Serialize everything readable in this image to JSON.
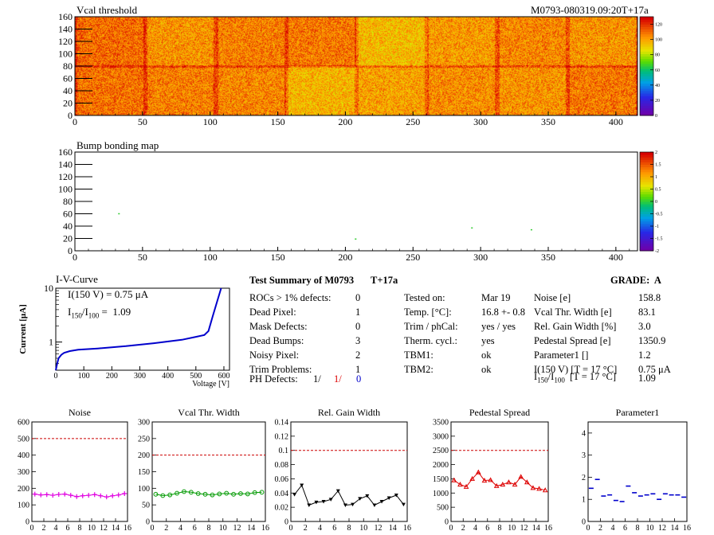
{
  "maps": {
    "vcal": {
      "title": "Vcal threshold",
      "module_label": "M0793-080319.09:20T+17a",
      "y_ticks": [
        "0",
        "20",
        "40",
        "60",
        "80",
        "100",
        "120",
        "140",
        "160"
      ],
      "x_ticks": [
        "0",
        "50",
        "100",
        "150",
        "200",
        "250",
        "300",
        "350",
        "400"
      ],
      "scale_ticks": [
        "0",
        "20",
        "40",
        "60",
        "80",
        "100",
        "120"
      ]
    },
    "bump": {
      "title": "Bump bonding map",
      "y_ticks": [
        "0",
        "20",
        "40",
        "60",
        "80",
        "100",
        "120",
        "140",
        "160"
      ],
      "x_ticks": [
        "0",
        "50",
        "100",
        "150",
        "200",
        "250",
        "300",
        "350",
        "400"
      ],
      "scale_ticks": [
        "-2",
        "-1.5",
        "-1",
        "-0.5",
        "0",
        "0.5",
        "1",
        "1.5",
        "2"
      ]
    }
  },
  "iv": {
    "title": "I-V-Curve",
    "ylabel": "Current [μA]",
    "xlabel": "Voltage [V]",
    "y_ticks": [
      "10",
      "1"
    ],
    "x_ticks": [
      "0",
      "100",
      "200",
      "300",
      "400",
      "500",
      "600"
    ],
    "line1": "I(150 V) = 0.75 μA",
    "line2_pre": "I",
    "line2_sub1": "150",
    "line2_mid": "/I",
    "line2_sub2": "100",
    "line2_post": " =  1.09"
  },
  "summary": {
    "header": "Test Summary of M0793",
    "suffix": "T+17a",
    "grade": "GRADE:  A",
    "col1": [
      {
        "label": "ROCs > 1% defects:",
        "value": "0"
      },
      {
        "label": "Dead Pixel:",
        "value": "1"
      },
      {
        "label": "Mask Defects:",
        "value": "0"
      },
      {
        "label": "Dead Bumps:",
        "value": "3"
      },
      {
        "label": "Noisy Pixel:",
        "value": "2"
      },
      {
        "label": "Trim Problems:",
        "value": "1"
      }
    ],
    "ph_defects": {
      "label": "PH Defects:",
      "v1": "1/",
      "v2": "1/",
      "v3": "0"
    },
    "col2": [
      {
        "label": "Tested on:",
        "value": "Mar 19"
      },
      {
        "label": "Temp. [°C]:",
        "value": "16.8 +- 0.8"
      },
      {
        "label": "Trim / phCal:",
        "value": "yes / yes"
      },
      {
        "label": "Therm. cycl.:",
        "value": "yes"
      },
      {
        "label": "TBM1:",
        "value": "ok"
      },
      {
        "label": "TBM2:",
        "value": "ok"
      }
    ],
    "col3": [
      {
        "label": "Noise [e]",
        "value": "158.8"
      },
      {
        "label": "Vcal Thr. Width [e]",
        "value": "83.1"
      },
      {
        "label": "Rel. Gain Width [%]",
        "value": "3.0"
      },
      {
        "label": "Pedestal Spread [e]",
        "value": "1350.9"
      },
      {
        "label": "Parameter1 []",
        "value": "1.2"
      },
      {
        "label": "I(150 V) [T = 17 °C]",
        "value": "0.75 μA"
      }
    ],
    "ratio": {
      "pre": "I",
      "sub1": "150",
      "mid": "/I",
      "sub2": "100",
      "post": "  [T = 17 °C]",
      "value": "1.09"
    }
  },
  "chart_data": [
    {
      "type": "heatmap",
      "title": "Vcal threshold",
      "x_range": [
        0,
        416
      ],
      "y_range": [
        0,
        160
      ],
      "z_range": [
        0,
        130
      ]
    },
    {
      "type": "heatmap",
      "title": "Bump bonding map",
      "x_range": [
        0,
        416
      ],
      "y_range": [
        0,
        160
      ],
      "z_range": [
        -2,
        2
      ]
    },
    {
      "type": "line",
      "title": "I-V-Curve",
      "xlabel": "Voltage [V]",
      "ylabel": "Current [μA]",
      "log_y": true,
      "x": [
        0,
        5,
        10,
        20,
        30,
        50,
        80,
        150,
        250,
        350,
        450,
        500,
        530,
        545,
        560,
        575,
        590
      ],
      "y": [
        0.3,
        0.4,
        0.5,
        0.58,
        0.63,
        0.68,
        0.72,
        0.76,
        0.84,
        0.95,
        1.1,
        1.25,
        1.35,
        1.6,
        3.0,
        5.5,
        10
      ]
    },
    {
      "type": "line",
      "title": "Noise",
      "color": "#e000e0",
      "marker": "cross",
      "xlim": [
        0,
        16
      ],
      "ylim": [
        0,
        600
      ],
      "threshold": 500,
      "y_ticks": [
        0,
        100,
        200,
        300,
        400,
        500,
        600
      ],
      "x_ticks": [
        0,
        2,
        4,
        6,
        8,
        10,
        12,
        14,
        16
      ],
      "x": [
        0,
        1,
        2,
        3,
        4,
        5,
        6,
        7,
        8,
        9,
        10,
        11,
        12,
        13,
        14,
        15
      ],
      "values": [
        165,
        160,
        162,
        158,
        163,
        165,
        158,
        150,
        155,
        158,
        162,
        155,
        148,
        155,
        160,
        168
      ]
    },
    {
      "type": "line",
      "title": "Vcal Thr. Width",
      "color": "#009900",
      "marker": "circle",
      "xlim": [
        0,
        16
      ],
      "ylim": [
        0,
        300
      ],
      "threshold": 200,
      "y_ticks": [
        0,
        50,
        100,
        150,
        200,
        250,
        300
      ],
      "x_ticks": [
        0,
        2,
        4,
        6,
        8,
        10,
        12,
        14,
        16
      ],
      "x": [
        0,
        1,
        2,
        3,
        4,
        5,
        6,
        7,
        8,
        9,
        10,
        11,
        12,
        13,
        14,
        15
      ],
      "values": [
        82,
        78,
        80,
        85,
        90,
        88,
        84,
        82,
        80,
        83,
        85,
        82,
        84,
        83,
        87,
        88
      ]
    },
    {
      "type": "line",
      "title": "Rel. Gain Width",
      "color": "#000000",
      "marker": "triangle-down",
      "xlim": [
        0,
        16
      ],
      "ylim": [
        0,
        0.14
      ],
      "threshold": 0.1,
      "y_ticks": [
        0,
        0.02,
        0.04,
        0.06,
        0.08,
        0.1,
        0.12,
        0.14
      ],
      "x_ticks": [
        0,
        2,
        4,
        6,
        8,
        10,
        12,
        14,
        16
      ],
      "x": [
        0,
        1,
        2,
        3,
        4,
        5,
        6,
        7,
        8,
        9,
        10,
        11,
        12,
        13,
        14,
        15
      ],
      "values": [
        0.038,
        0.051,
        0.023,
        0.027,
        0.028,
        0.031,
        0.043,
        0.023,
        0.024,
        0.032,
        0.036,
        0.023,
        0.028,
        0.033,
        0.037,
        0.024
      ]
    },
    {
      "type": "line",
      "title": "Pedestal Spread",
      "color": "#dd0000",
      "marker": "triangle-up-open",
      "xlim": [
        0,
        16
      ],
      "ylim": [
        0,
        3500
      ],
      "threshold": 2500,
      "y_ticks": [
        0,
        500,
        1000,
        1500,
        2000,
        2500,
        3000,
        3500
      ],
      "x_ticks": [
        0,
        2,
        4,
        6,
        8,
        10,
        12,
        14,
        16
      ],
      "x": [
        0,
        1,
        2,
        3,
        4,
        5,
        6,
        7,
        8,
        9,
        10,
        11,
        12,
        13,
        14,
        15
      ],
      "values": [
        1450,
        1300,
        1220,
        1500,
        1730,
        1440,
        1460,
        1250,
        1300,
        1380,
        1300,
        1570,
        1380,
        1180,
        1150,
        1100
      ]
    },
    {
      "type": "scatter",
      "title": "Parameter1",
      "color": "#0000cc",
      "marker": "hbar",
      "xlim": [
        0,
        16
      ],
      "ylim": [
        0,
        4.5
      ],
      "y_ticks": [
        0,
        1,
        2,
        3,
        4
      ],
      "x_ticks": [
        0,
        2,
        4,
        6,
        8,
        10,
        12,
        14,
        16
      ],
      "x": [
        0,
        1,
        2,
        3,
        4,
        5,
        6,
        7,
        8,
        9,
        10,
        11,
        12,
        13,
        14,
        15
      ],
      "values": [
        1.5,
        1.9,
        1.15,
        1.2,
        0.95,
        0.9,
        1.6,
        1.3,
        1.15,
        1.2,
        1.25,
        1.0,
        1.25,
        1.2,
        1.2,
        1.1
      ]
    }
  ]
}
